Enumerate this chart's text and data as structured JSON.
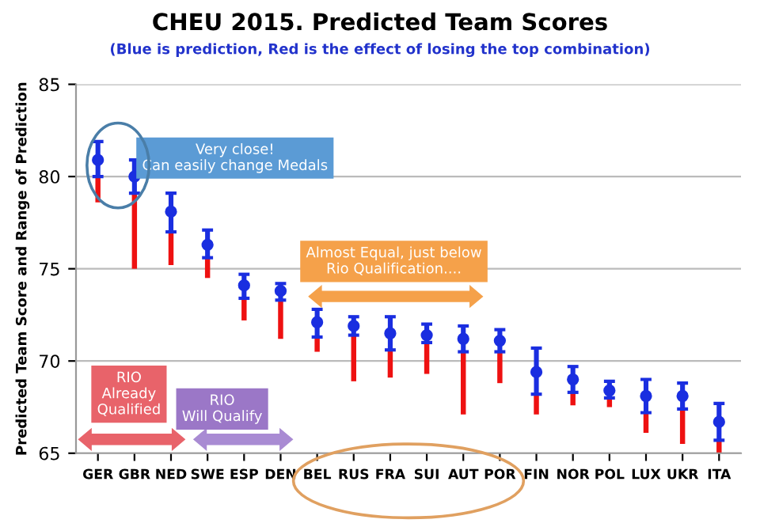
{
  "chart_data": {
    "type": "scatter",
    "title": "CHEU 2015. Predicted Team Scores",
    "subtitle": "(Blue is prediction, Red is the effect of losing the top combination)",
    "ylabel": "Predicted Team Score and Range of Prediction",
    "categories": [
      "GER",
      "GBR",
      "NED",
      "SWE",
      "ESP",
      "DEN",
      "BEL",
      "RUS",
      "FRA",
      "SUI",
      "AUT",
      "POR",
      "FIN",
      "NOR",
      "POL",
      "LUX",
      "UKR",
      "ITA"
    ],
    "series": [
      {
        "type": "bar",
        "color": "#ee1111",
        "base": [
          78.6,
          75.0,
          75.2,
          74.5,
          72.2,
          71.2,
          70.5,
          68.9,
          69.1,
          69.3,
          67.1,
          68.8,
          67.1,
          67.6,
          67.5,
          66.1,
          65.5,
          65.0
        ],
        "values": [
          1.4,
          4.1,
          1.8,
          1.1,
          1.2,
          2.1,
          0.8,
          2.5,
          1.5,
          1.7,
          3.4,
          1.7,
          1.1,
          0.7,
          0.5,
          1.1,
          1.9,
          0.7
        ]
      },
      {
        "color": "#1a2ee0",
        "values": [
          80.9,
          80.0,
          78.1,
          76.3,
          74.1,
          73.8,
          72.1,
          71.9,
          71.5,
          71.4,
          71.2,
          71.1,
          69.4,
          69.0,
          68.4,
          68.1,
          68.1,
          66.7
        ],
        "errors": [
          [
            80.0,
            81.9
          ],
          [
            79.1,
            80.9
          ],
          [
            77.0,
            79.1
          ],
          [
            75.6,
            77.1
          ],
          [
            73.4,
            74.7
          ],
          [
            73.3,
            74.2
          ],
          [
            71.3,
            72.8
          ],
          [
            71.4,
            72.4
          ],
          [
            70.6,
            72.4
          ],
          [
            71.0,
            72.0
          ],
          [
            70.5,
            71.9
          ],
          [
            70.5,
            71.7
          ],
          [
            68.2,
            70.7
          ],
          [
            68.3,
            69.7
          ],
          [
            68.0,
            68.9
          ],
          [
            67.2,
            69.0
          ],
          [
            67.4,
            68.8
          ],
          [
            65.7,
            67.7
          ]
        ]
      }
    ],
    "marker": "circle",
    "ylim": [
      65,
      85
    ],
    "yticks": [
      65,
      70,
      75,
      80,
      85
    ],
    "grid": "y",
    "annotations": [
      "Very close!\nCan easily change Medals",
      "Almost Equal, just below\nRio Qualification....",
      "RIO\nAlready\nQualified",
      "RIO\nWill Qualify"
    ]
  }
}
